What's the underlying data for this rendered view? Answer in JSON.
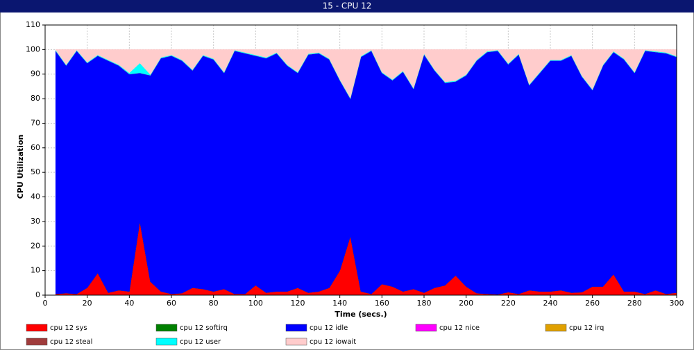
{
  "chart_data": {
    "type": "stacked_area",
    "title": "15 - CPU 12",
    "x_label": "Time (secs.)",
    "y_label": "CPU Utilization",
    "x": [
      5,
      10,
      15,
      20,
      25,
      30,
      35,
      40,
      45,
      50,
      55,
      60,
      65,
      70,
      75,
      80,
      85,
      90,
      95,
      100,
      105,
      110,
      115,
      120,
      125,
      130,
      135,
      140,
      145,
      150,
      155,
      160,
      165,
      170,
      175,
      180,
      185,
      190,
      195,
      200,
      205,
      210,
      215,
      220,
      225,
      230,
      235,
      240,
      245,
      250,
      255,
      260,
      265,
      270,
      275,
      280,
      285,
      290,
      295,
      300
    ],
    "xlim": [
      0,
      300
    ],
    "xticks": [
      0,
      20,
      40,
      60,
      80,
      100,
      120,
      140,
      160,
      180,
      200,
      220,
      240,
      260,
      280,
      300
    ],
    "ylim": [
      0,
      110
    ],
    "yticks": [
      0,
      10,
      20,
      30,
      40,
      50,
      60,
      70,
      80,
      90,
      100,
      110
    ],
    "grid": true,
    "series": [
      {
        "name": "cpu 12 sys",
        "color": "#ff0000",
        "values": [
          0.5,
          0.8,
          0.5,
          3,
          9,
          1,
          2,
          1.5,
          30,
          5.5,
          1.5,
          0.5,
          0.8,
          3,
          2.5,
          1.5,
          2.5,
          0.5,
          0.5,
          4,
          1,
          1.5,
          1.5,
          3,
          1,
          1.5,
          3,
          10,
          24,
          1.5,
          0.5,
          4.5,
          3.5,
          1.5,
          2.5,
          1,
          3,
          4,
          8,
          3.5,
          0.8,
          0.5,
          0.3,
          1.2,
          0.5,
          2,
          1.5,
          1.5,
          2,
          1,
          1.2,
          3.5,
          3.5,
          8.5,
          1.5,
          1.5,
          0.5,
          2,
          0.5,
          1
        ]
      },
      {
        "name": "cpu 12 softirq",
        "color": "#008000",
        "values": [
          0,
          0,
          0,
          0,
          0,
          0,
          0,
          0,
          0,
          0,
          0,
          0,
          0,
          0,
          0,
          0,
          0,
          0,
          0,
          0,
          0,
          0,
          0,
          0,
          0,
          0,
          0,
          0,
          0,
          0,
          0,
          0,
          0,
          0,
          0,
          0,
          0,
          0,
          0,
          0,
          0,
          0,
          0,
          0,
          0,
          0,
          0,
          0,
          0,
          0,
          0,
          0,
          0,
          0,
          0,
          0,
          0,
          0,
          0,
          0
        ]
      },
      {
        "name": "cpu 12 idle",
        "color": "#0000ff",
        "values": [
          99,
          92.7,
          99,
          91.5,
          88.5,
          94.5,
          91.5,
          88.5,
          60.5,
          84,
          95,
          97,
          94.7,
          88.5,
          95,
          94.5,
          88,
          99,
          98,
          93.5,
          95.5,
          97,
          92,
          87.5,
          97,
          97,
          93,
          77.5,
          56,
          95.5,
          99,
          86,
          84,
          89.5,
          81.5,
          97,
          88.5,
          82.5,
          79,
          86,
          94.7,
          98.5,
          99.2,
          92.8,
          97.5,
          83.5,
          89,
          94,
          93.5,
          96.5,
          87.8,
          80,
          90,
          90.5,
          94.5,
          89,
          99,
          97,
          98,
          96
        ]
      },
      {
        "name": "cpu 12 nice",
        "color": "#ff00ff",
        "values": [
          0,
          0,
          0,
          0,
          0,
          0,
          0,
          0,
          0,
          0,
          0,
          0,
          0,
          0,
          0,
          0,
          0,
          0,
          0,
          0,
          0,
          0,
          0,
          0,
          0,
          0,
          0,
          0,
          0,
          0,
          0,
          0,
          0,
          0,
          0,
          0,
          0,
          0,
          0,
          0,
          0,
          0,
          0,
          0,
          0,
          0,
          0,
          0,
          0,
          0,
          0,
          0,
          0,
          0,
          0,
          0,
          0,
          0,
          0,
          0
        ]
      },
      {
        "name": "cpu 12 irq",
        "color": "#e0a000",
        "values": [
          0,
          0,
          0,
          0,
          0,
          0,
          0,
          0,
          0,
          0,
          0,
          0,
          0,
          0,
          0,
          0,
          0,
          0,
          0,
          0,
          0,
          0,
          0,
          0,
          0,
          0,
          0,
          0,
          0,
          0,
          0,
          0,
          0,
          0,
          0,
          0,
          0,
          0,
          0,
          0,
          0,
          0,
          0,
          0,
          0,
          0,
          0,
          0,
          0,
          0,
          0,
          0,
          0,
          0,
          0,
          0,
          0,
          0,
          0,
          0
        ]
      },
      {
        "name": "cpu 12 steal",
        "color": "#a03c3c",
        "values": [
          0,
          0,
          0,
          0,
          0,
          0,
          0,
          0,
          0,
          0,
          0,
          0,
          0,
          0,
          0,
          0,
          0,
          0,
          0,
          0,
          0,
          0,
          0,
          0,
          0,
          0,
          0,
          0,
          0,
          0,
          0,
          0,
          0,
          0,
          0,
          0,
          0,
          0,
          0,
          0,
          0,
          0,
          0,
          0,
          0,
          0,
          0,
          0,
          0,
          0,
          0,
          0,
          0,
          0,
          0,
          0,
          0,
          0,
          0,
          0
        ]
      },
      {
        "name": "cpu 12 user",
        "color": "#00ffff",
        "values": [
          0.3,
          0.3,
          0.3,
          0.3,
          0.3,
          0.3,
          0.3,
          0.5,
          4,
          0.3,
          0.3,
          0.3,
          0.3,
          0.3,
          0.3,
          0.3,
          0.3,
          0.3,
          0.3,
          0.3,
          0.3,
          0.3,
          0.3,
          0.3,
          0.3,
          0.3,
          0.3,
          0.3,
          0.3,
          0.3,
          0.3,
          0.3,
          0.3,
          0.3,
          0.3,
          0.3,
          0.3,
          0.3,
          0.3,
          0.3,
          0.3,
          0.3,
          0.3,
          0.3,
          0.3,
          0.3,
          0.3,
          0.3,
          0.3,
          0.3,
          0.3,
          0.3,
          0.3,
          0.3,
          0.3,
          0.3,
          0.3,
          0.3,
          0.3,
          0.3
        ]
      },
      {
        "name": "cpu 12 iowait",
        "color": "#ffcccc",
        "values": [
          0.2,
          6.2,
          0.2,
          5.2,
          2.2,
          4.2,
          6.2,
          9.5,
          5.5,
          10.2,
          3.2,
          2.2,
          4.2,
          8.2,
          2.2,
          3.7,
          9.2,
          0.2,
          1.2,
          2.2,
          3.2,
          1.2,
          6.2,
          9.2,
          1.7,
          1.2,
          3.7,
          12.2,
          19.7,
          2.7,
          0.2,
          9.2,
          12.2,
          8.7,
          15.7,
          1.7,
          8.2,
          13.2,
          12.7,
          10.2,
          4.2,
          0.7,
          0.2,
          5.7,
          1.7,
          14.2,
          9.2,
          4.2,
          4.2,
          2.2,
          10.7,
          16.2,
          6.2,
          0.7,
          3.7,
          9.2,
          0.2,
          0.7,
          1.2,
          2.7
        ]
      }
    ]
  }
}
